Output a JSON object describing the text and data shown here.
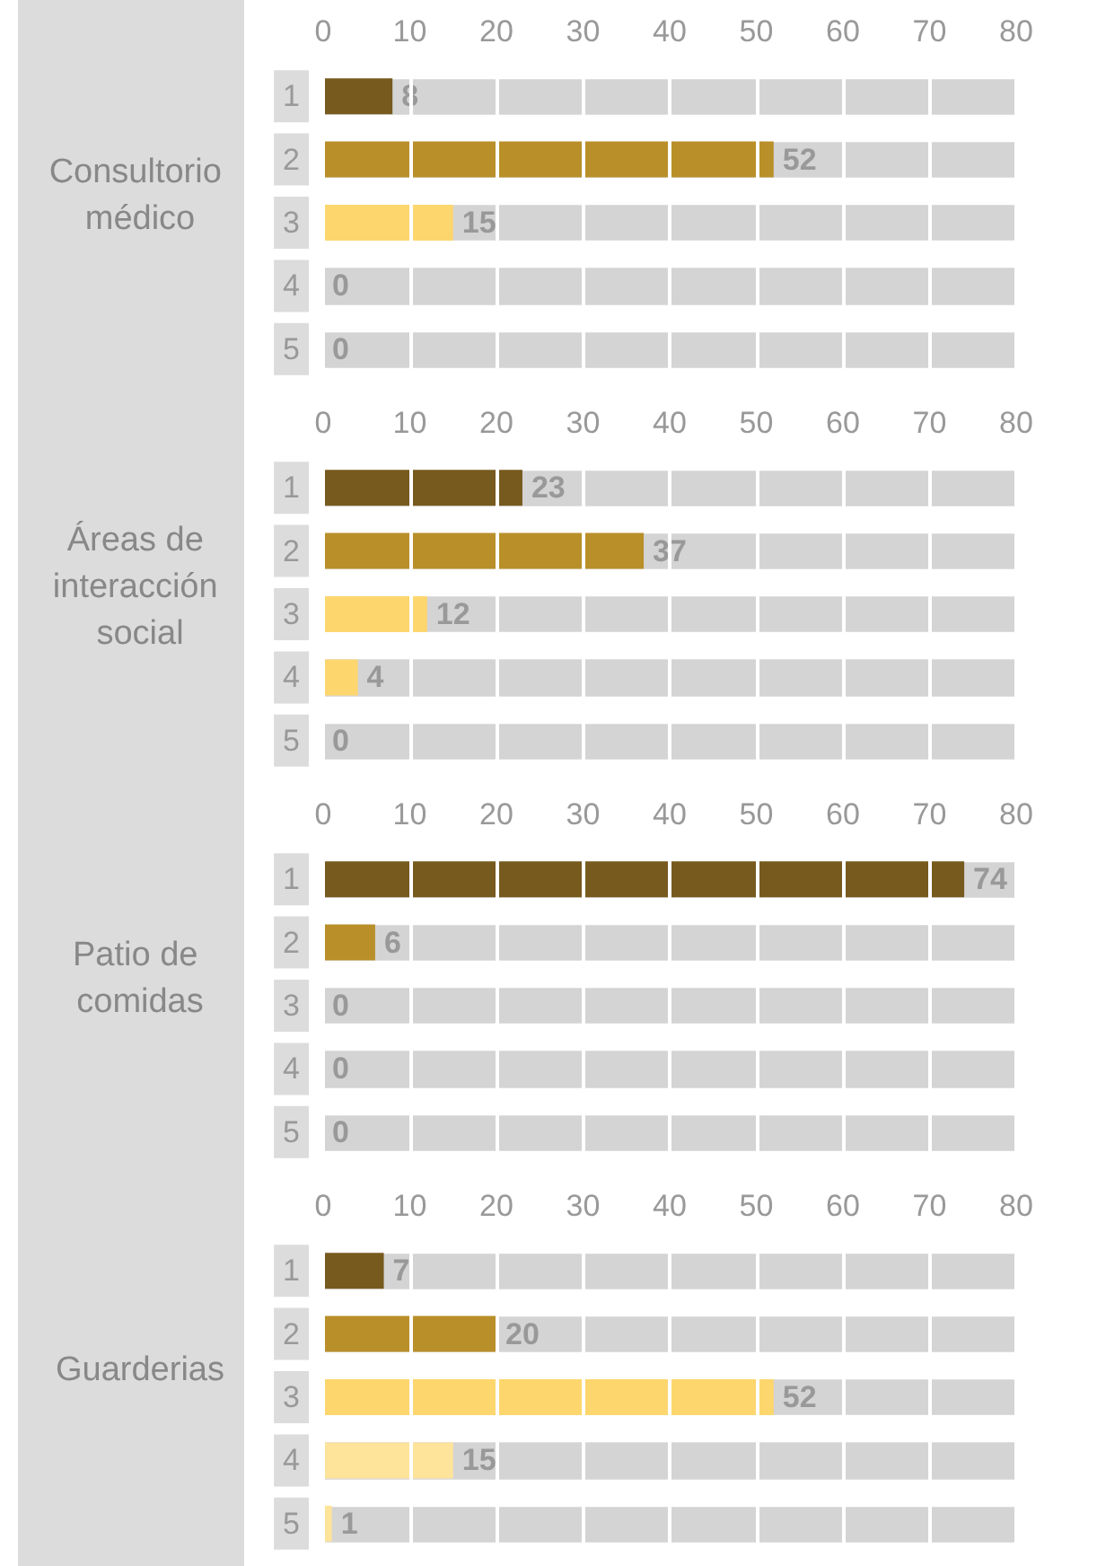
{
  "chart_data": [
    {
      "type": "bar",
      "orientation": "horizontal",
      "title": "Consultorio médico",
      "categories": [
        "1",
        "2",
        "3",
        "4",
        "5"
      ],
      "values": [
        8,
        52,
        15,
        0,
        0
      ],
      "colors": [
        "#775a1e",
        "#b98f2a",
        "#fdd66e",
        "#fee49b",
        "#fee49b"
      ],
      "xlim": [
        0,
        80
      ],
      "xticks": [
        0,
        10,
        20,
        30,
        40,
        50,
        60,
        70,
        80
      ],
      "grid": "x",
      "data_labels": true
    },
    {
      "type": "bar",
      "orientation": "horizontal",
      "title": "Áreas de interacción social",
      "categories": [
        "1",
        "2",
        "3",
        "4",
        "5"
      ],
      "values": [
        23,
        37,
        12,
        4,
        0
      ],
      "colors": [
        "#775a1e",
        "#b98f2a",
        "#fdd66e",
        "#fdd66e",
        "#fee49b"
      ],
      "xlim": [
        0,
        80
      ],
      "xticks": [
        0,
        10,
        20,
        30,
        40,
        50,
        60,
        70,
        80
      ],
      "grid": "x",
      "data_labels": true
    },
    {
      "type": "bar",
      "orientation": "horizontal",
      "title": "Patio de comidas",
      "categories": [
        "1",
        "2",
        "3",
        "4",
        "5"
      ],
      "values": [
        74,
        6,
        0,
        0,
        0
      ],
      "colors": [
        "#775a1e",
        "#b98f2a",
        "#fdd66e",
        "#fee49b",
        "#fee49b"
      ],
      "xlim": [
        0,
        80
      ],
      "xticks": [
        0,
        10,
        20,
        30,
        40,
        50,
        60,
        70,
        80
      ],
      "grid": "x",
      "data_labels": true
    },
    {
      "type": "bar",
      "orientation": "horizontal",
      "title": "Guarderias",
      "categories": [
        "1",
        "2",
        "3",
        "4",
        "5"
      ],
      "values": [
        7,
        20,
        52,
        15,
        1
      ],
      "colors": [
        "#775a1e",
        "#b98f2a",
        "#fdd66e",
        "#fee49b",
        "#fee49b"
      ],
      "xlim": [
        0,
        80
      ],
      "xticks": [
        0,
        10,
        20,
        30,
        40,
        50,
        60,
        70,
        80
      ],
      "grid": "x",
      "data_labels": true
    }
  ]
}
